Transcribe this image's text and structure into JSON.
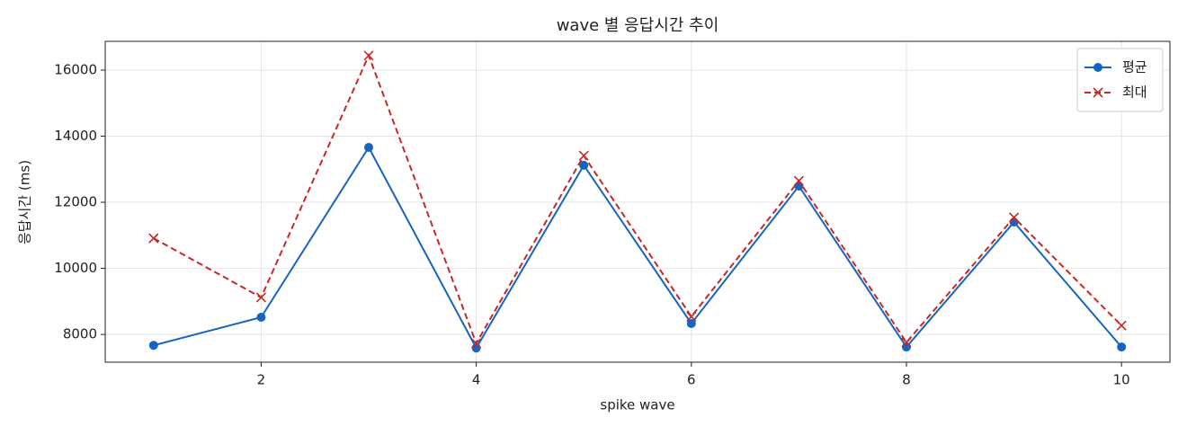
{
  "chart_data": {
    "type": "line",
    "title": "wave 별 응답시간 추이",
    "xlabel": "spike wave",
    "ylabel": "응답시간 (ms)",
    "x": [
      1,
      2,
      3,
      4,
      5,
      6,
      7,
      8,
      9,
      10
    ],
    "series": [
      {
        "name": "평균",
        "color": "#1565c0",
        "marker": "o",
        "linestyle": "solid",
        "values": [
          7670,
          8520,
          13660,
          7590,
          13120,
          8330,
          12490,
          7620,
          11400,
          7620
        ]
      },
      {
        "name": "최대",
        "color": "#c62828",
        "marker": "x",
        "linestyle": "dashed",
        "values": [
          10910,
          9120,
          16440,
          7730,
          13410,
          8540,
          12650,
          7760,
          11540,
          8270
        ]
      }
    ],
    "xlim": [
      0.55,
      10.45
    ],
    "xticks": [
      2,
      4,
      6,
      8,
      10
    ],
    "ylim": [
      7160,
      16870
    ],
    "yticks": [
      8000,
      10000,
      12000,
      14000,
      16000
    ],
    "grid": true,
    "legend": "upper right"
  }
}
